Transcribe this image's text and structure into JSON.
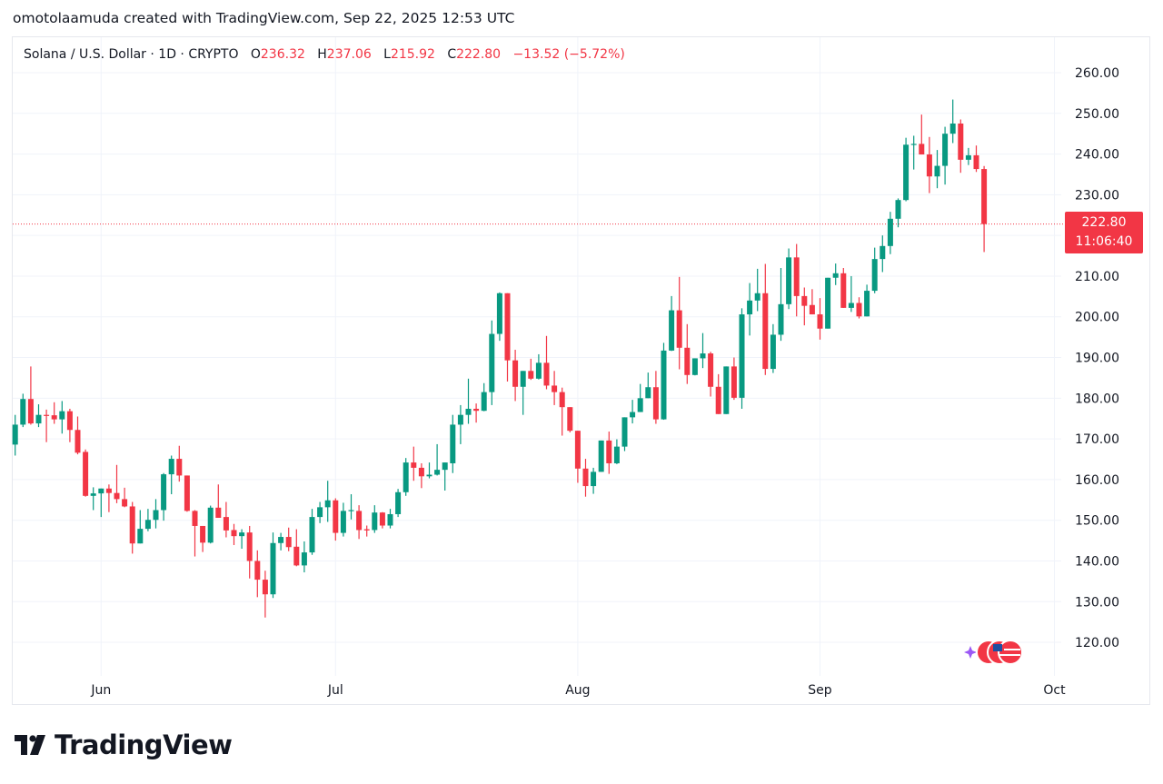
{
  "credit": "omotolaamuda created with TradingView.com, Sep 22, 2025 12:53 UTC",
  "legend": {
    "symbol": "Solana / U.S. Dollar · 1D · CRYPTO",
    "o_label": "O",
    "o": "236.32",
    "h_label": "H",
    "h": "237.06",
    "l_label": "L",
    "l": "215.92",
    "c_label": "C",
    "c": "222.80",
    "change": "−13.52 (−5.72%)"
  },
  "current_price": {
    "price": "222.80",
    "countdown": "11:06:40"
  },
  "logo": {
    "text": "TradingView"
  },
  "colors": {
    "up": "#089981",
    "down": "#f23645",
    "grid": "#f0f3fa"
  },
  "chart_data": {
    "type": "candlestick",
    "title": "Solana / U.S. Dollar · 1D · CRYPTO",
    "ylim": [
      113,
      262
    ],
    "y_ticks": [
      "260.00",
      "250.00",
      "240.00",
      "230.00",
      "210.00",
      "200.00",
      "190.00",
      "180.00",
      "170.00",
      "160.00",
      "150.00",
      "140.00",
      "130.00",
      "120.00"
    ],
    "x_ticks": [
      {
        "label": "Jun",
        "day": 11
      },
      {
        "label": "Jul",
        "day": 41
      },
      {
        "label": "Aug",
        "day": 72
      },
      {
        "label": "Sep",
        "day": 103
      },
      {
        "label": "Oct",
        "day": 133
      }
    ],
    "last_price": 222.8,
    "candles_ohlc": [
      [
        168.6,
        175.9,
        165.9,
        173.5
      ],
      [
        173.5,
        181.1,
        172.9,
        179.8
      ],
      [
        179.8,
        187.8,
        173.5,
        173.8
      ],
      [
        173.8,
        178.5,
        172.9,
        175.9
      ],
      [
        175.9,
        177.2,
        169.2,
        175.7
      ],
      [
        175.8,
        179.0,
        173.7,
        174.8
      ],
      [
        174.8,
        179.3,
        171.3,
        176.8
      ],
      [
        176.8,
        177.4,
        169.2,
        172.2
      ],
      [
        172.2,
        175.5,
        166.2,
        166.6
      ],
      [
        166.8,
        167.4,
        155.8,
        156.0
      ],
      [
        156.0,
        158.1,
        152.5,
        156.6
      ],
      [
        156.6,
        157.8,
        150.8,
        157.8
      ],
      [
        157.8,
        158.8,
        152.0,
        156.7
      ],
      [
        156.7,
        163.6,
        154.2,
        155.2
      ],
      [
        155.2,
        158.0,
        153.2,
        153.4
      ],
      [
        153.4,
        154.5,
        141.8,
        144.3
      ],
      [
        144.3,
        152.5,
        144.3,
        147.9
      ],
      [
        147.9,
        152.8,
        147.3,
        150.1
      ],
      [
        150.1,
        155.2,
        148.0,
        152.5
      ],
      [
        152.5,
        161.6,
        149.9,
        161.3
      ],
      [
        161.3,
        165.9,
        156.4,
        165.1
      ],
      [
        165.1,
        168.3,
        159.5,
        161.0
      ],
      [
        161.0,
        161.0,
        152.1,
        152.3
      ],
      [
        152.3,
        152.5,
        141.1,
        148.6
      ],
      [
        148.6,
        148.6,
        142.2,
        144.5
      ],
      [
        144.5,
        153.6,
        144.3,
        153.1
      ],
      [
        153.1,
        158.8,
        150.6,
        150.6
      ],
      [
        150.8,
        154.5,
        145.8,
        147.5
      ],
      [
        147.6,
        149.1,
        143.9,
        146.1
      ],
      [
        146.1,
        147.8,
        143.0,
        147.0
      ],
      [
        147.0,
        148.6,
        135.7,
        140.0
      ],
      [
        140.0,
        142.6,
        131.1,
        135.4
      ],
      [
        135.4,
        137.6,
        126.1,
        131.8
      ],
      [
        131.8,
        147.0,
        130.9,
        144.4
      ],
      [
        144.4,
        146.9,
        142.6,
        145.9
      ],
      [
        145.9,
        148.2,
        142.4,
        143.4
      ],
      [
        143.5,
        147.8,
        138.7,
        138.9
      ],
      [
        138.9,
        144.8,
        137.2,
        142.1
      ],
      [
        142.1,
        152.8,
        141.5,
        150.8
      ],
      [
        150.8,
        154.5,
        149.3,
        153.2
      ],
      [
        153.2,
        159.7,
        149.6,
        154.9
      ],
      [
        154.9,
        155.4,
        145.0,
        146.9
      ],
      [
        146.9,
        154.3,
        146.0,
        152.3
      ],
      [
        152.3,
        156.4,
        150.2,
        152.5
      ],
      [
        152.3,
        153.7,
        145.4,
        147.6
      ],
      [
        147.8,
        148.7,
        146.0,
        147.5
      ],
      [
        147.6,
        153.7,
        146.9,
        151.9
      ],
      [
        151.9,
        152.0,
        148.0,
        148.7
      ],
      [
        148.7,
        152.8,
        148.0,
        151.5
      ],
      [
        151.5,
        157.7,
        150.8,
        156.9
      ],
      [
        156.9,
        165.3,
        156.0,
        164.2
      ],
      [
        164.2,
        168.1,
        159.7,
        162.9
      ],
      [
        162.9,
        164.0,
        157.9,
        160.8
      ],
      [
        160.8,
        164.2,
        160.3,
        161.2
      ],
      [
        161.2,
        168.7,
        161.0,
        162.4
      ],
      [
        162.4,
        164.2,
        157.3,
        164.2
      ],
      [
        164.0,
        175.9,
        161.6,
        173.5
      ],
      [
        173.5,
        178.3,
        168.7,
        175.9
      ],
      [
        175.9,
        184.8,
        173.7,
        177.4
      ],
      [
        177.4,
        178.7,
        174.0,
        176.9
      ],
      [
        176.9,
        183.7,
        176.8,
        181.5
      ],
      [
        181.5,
        199.1,
        178.3,
        195.8
      ],
      [
        195.8,
        206.0,
        194.1,
        205.8
      ],
      [
        205.8,
        205.8,
        184.1,
        189.3
      ],
      [
        189.3,
        191.9,
        179.3,
        182.8
      ],
      [
        182.8,
        186.7,
        175.9,
        186.7
      ],
      [
        186.7,
        189.7,
        184.5,
        184.8
      ],
      [
        184.8,
        190.8,
        184.6,
        188.7
      ],
      [
        188.7,
        195.3,
        182.2,
        183.1
      ],
      [
        183.1,
        186.7,
        178.3,
        181.5
      ],
      [
        181.5,
        182.6,
        170.8,
        177.8
      ],
      [
        177.8,
        177.8,
        171.6,
        172.0
      ],
      [
        172.0,
        172.0,
        159.2,
        162.7
      ],
      [
        162.7,
        165.1,
        155.8,
        158.4
      ],
      [
        158.4,
        162.9,
        156.5,
        161.9
      ],
      [
        161.9,
        169.6,
        161.9,
        169.6
      ],
      [
        169.6,
        171.8,
        161.4,
        164.0
      ],
      [
        164.0,
        169.9,
        163.8,
        168.1
      ],
      [
        168.1,
        175.3,
        167.0,
        175.3
      ],
      [
        175.3,
        179.6,
        173.8,
        176.6
      ],
      [
        176.6,
        183.5,
        176.6,
        180.0
      ],
      [
        180.0,
        186.3,
        180.0,
        182.7
      ],
      [
        182.7,
        186.7,
        173.7,
        174.8
      ],
      [
        174.8,
        193.6,
        174.7,
        191.7
      ],
      [
        191.7,
        205.1,
        191.6,
        201.6
      ],
      [
        201.6,
        209.8,
        187.1,
        192.4
      ],
      [
        192.4,
        198.2,
        183.5,
        185.7
      ],
      [
        185.7,
        189.8,
        185.6,
        189.8
      ],
      [
        189.8,
        196.0,
        187.4,
        191.0
      ],
      [
        191.0,
        191.4,
        180.4,
        182.8
      ],
      [
        182.8,
        185.9,
        176.1,
        176.1
      ],
      [
        176.1,
        187.8,
        176.1,
        187.8
      ],
      [
        187.8,
        190.0,
        179.6,
        180.1
      ],
      [
        180.1,
        202.1,
        177.4,
        200.6
      ],
      [
        200.6,
        208.3,
        195.4,
        204.0
      ],
      [
        204.0,
        211.8,
        201.4,
        205.8
      ],
      [
        205.8,
        213.0,
        185.7,
        187.2
      ],
      [
        187.2,
        198.2,
        186.2,
        195.6
      ],
      [
        195.6,
        212.0,
        194.1,
        203.1
      ],
      [
        203.1,
        216.8,
        201.9,
        214.6
      ],
      [
        214.6,
        217.9,
        200.1,
        205.1
      ],
      [
        205.1,
        207.2,
        197.9,
        202.7
      ],
      [
        202.9,
        206.8,
        200.6,
        200.6
      ],
      [
        200.6,
        204.6,
        194.4,
        197.1
      ],
      [
        197.1,
        209.6,
        197.1,
        209.6
      ],
      [
        209.6,
        213.1,
        207.8,
        210.7
      ],
      [
        210.7,
        212.0,
        202.2,
        202.2
      ],
      [
        202.2,
        210.0,
        201.2,
        203.4
      ],
      [
        203.4,
        204.8,
        199.6,
        200.1
      ],
      [
        200.1,
        207.9,
        200.1,
        206.4
      ],
      [
        206.4,
        217.0,
        205.8,
        214.2
      ],
      [
        214.2,
        220.0,
        211.0,
        217.4
      ],
      [
        217.4,
        225.8,
        215.4,
        224.1
      ],
      [
        224.1,
        229.1,
        222.0,
        228.7
      ],
      [
        228.7,
        244.0,
        228.4,
        242.3
      ],
      [
        242.3,
        244.5,
        236.2,
        242.5
      ],
      [
        242.5,
        249.7,
        239.9,
        239.9
      ],
      [
        239.9,
        244.2,
        230.4,
        234.5
      ],
      [
        234.5,
        241.0,
        231.6,
        237.1
      ],
      [
        237.1,
        246.7,
        232.5,
        245.0
      ],
      [
        245.0,
        253.4,
        242.7,
        247.5
      ],
      [
        247.5,
        248.5,
        235.4,
        238.6
      ],
      [
        238.6,
        241.5,
        237.3,
        239.7
      ],
      [
        239.7,
        242.1,
        235.6,
        236.32
      ],
      [
        236.32,
        237.06,
        215.92,
        222.8
      ]
    ]
  }
}
